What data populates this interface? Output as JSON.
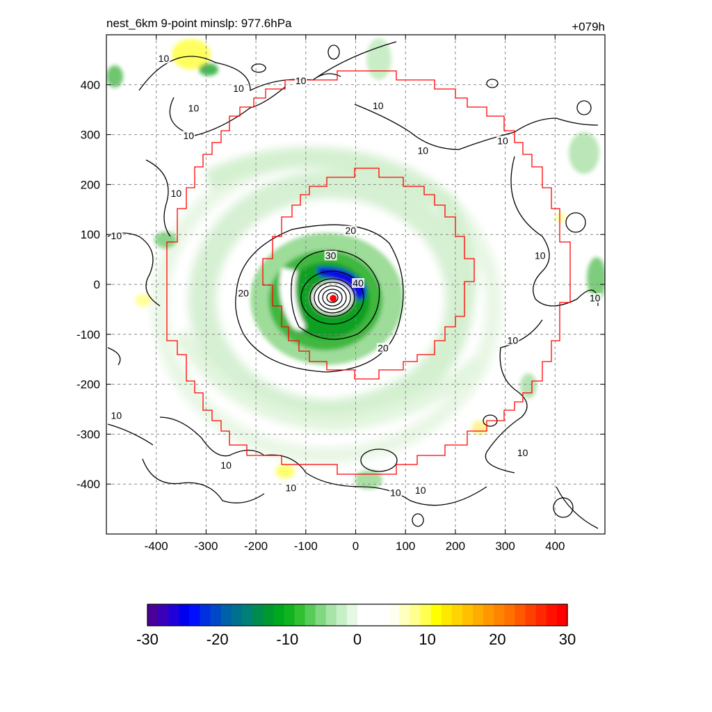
{
  "chart_data": {
    "type": "heatmap",
    "title_left": "nest_6km  9-point minslp: 977.6hPa",
    "title_right": "+079h",
    "xlabel": "",
    "ylabel": "",
    "xlim": [
      -500,
      500
    ],
    "ylim": [
      -500,
      500
    ],
    "x_ticks": [
      -400,
      -300,
      -200,
      -100,
      0,
      100,
      200,
      300,
      400
    ],
    "y_ticks": [
      400,
      300,
      200,
      100,
      0,
      -100,
      -200,
      -300,
      -400
    ],
    "grid": true,
    "storm_center": {
      "x": -45,
      "y": -28
    },
    "colorbar": {
      "min": -30,
      "max": 30,
      "ticks": [
        -30,
        -20,
        -10,
        0,
        10,
        20,
        30
      ],
      "tick_labels": [
        "-30",
        "-20",
        "-10",
        "0",
        "10",
        "20",
        "30"
      ],
      "colors": [
        "#4b0098",
        "#3a00b8",
        "#2000d8",
        "#0000f0",
        "#0010ff",
        "#0030e0",
        "#0048c8",
        "#0060a8",
        "#007090",
        "#008078",
        "#008c50",
        "#009830",
        "#00a820",
        "#10b420",
        "#30c030",
        "#58cc58",
        "#80d880",
        "#a8e4a8",
        "#c8f0c8",
        "#e4f8e4",
        "#ffffff",
        "#ffffff",
        "#ffffff",
        "#fffff0",
        "#ffffc0",
        "#ffff90",
        "#ffff50",
        "#ffff00",
        "#ffe800",
        "#ffd400",
        "#ffc000",
        "#ffac00",
        "#ff9800",
        "#ff8400",
        "#ff7000",
        "#ff5800",
        "#ff4000",
        "#ff2800",
        "#ff1000",
        "#ff0000"
      ]
    },
    "contour_labels": [
      {
        "text": "10",
        "x": -385,
        "y": 450
      },
      {
        "text": "10",
        "x": -235,
        "y": 390
      },
      {
        "text": "10",
        "x": -325,
        "y": 350
      },
      {
        "text": "10",
        "x": -335,
        "y": 295
      },
      {
        "text": "10",
        "x": -360,
        "y": 180
      },
      {
        "text": "10",
        "x": -480,
        "y": 95
      },
      {
        "text": "10",
        "x": -110,
        "y": 405
      },
      {
        "text": "10",
        "x": 45,
        "y": 355
      },
      {
        "text": "10",
        "x": 135,
        "y": 265
      },
      {
        "text": "10",
        "x": 295,
        "y": 285
      },
      {
        "text": "10",
        "x": 370,
        "y": 55
      },
      {
        "text": "10",
        "x": 480,
        "y": -30
      },
      {
        "text": "10",
        "x": 315,
        "y": -115
      },
      {
        "text": "10",
        "x": -480,
        "y": -265
      },
      {
        "text": "10",
        "x": -260,
        "y": -365
      },
      {
        "text": "10",
        "x": -130,
        "y": -410
      },
      {
        "text": "10",
        "x": 80,
        "y": -420
      },
      {
        "text": "10",
        "x": 130,
        "y": -415
      },
      {
        "text": "10",
        "x": 335,
        "y": -340
      },
      {
        "text": "20",
        "x": -10,
        "y": 105
      },
      {
        "text": "20",
        "x": -225,
        "y": -20
      },
      {
        "text": "20",
        "x": 55,
        "y": -130
      },
      {
        "text": "30",
        "x": -50,
        "y": 55
      },
      {
        "text": "40",
        "x": 5,
        "y": 0
      }
    ]
  }
}
